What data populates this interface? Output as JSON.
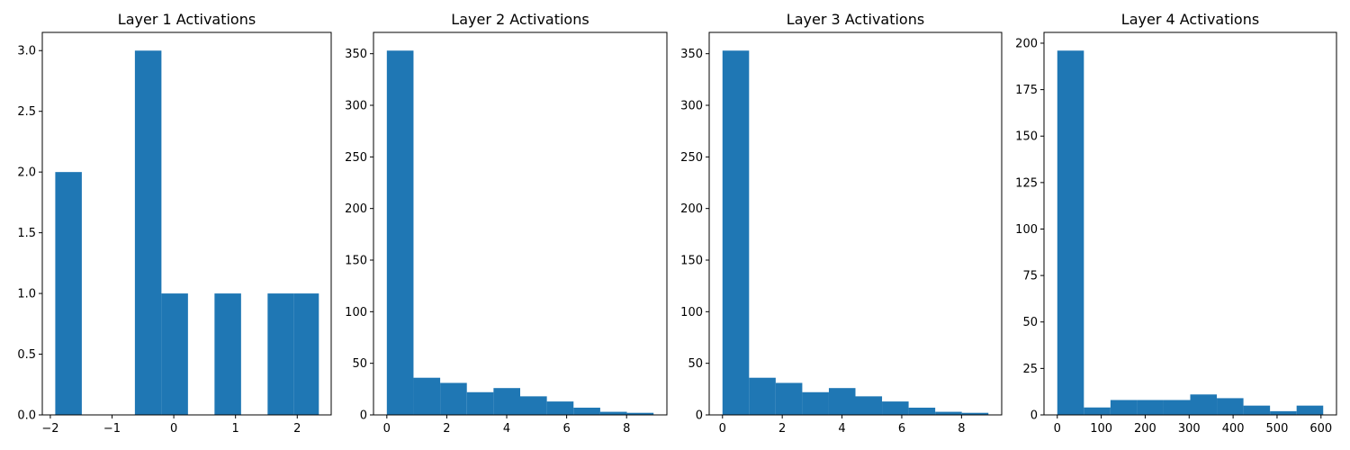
{
  "bar_color": "#1f77b4",
  "chart_data": [
    {
      "type": "bar",
      "title": "Layer 1 Activations",
      "xlabel": "",
      "ylabel": "",
      "bin_edges": [
        -1.92,
        -1.49,
        -1.06,
        -0.63,
        -0.2,
        0.23,
        0.66,
        1.09,
        1.52,
        1.95,
        2.35
      ],
      "counts": [
        2,
        0,
        0,
        3,
        1,
        0,
        1,
        0,
        1,
        1
      ],
      "xlim": [
        -2.13,
        2.55
      ],
      "ylim": [
        0,
        3.15
      ],
      "xticks": [
        -2,
        -1,
        0,
        1,
        2
      ],
      "xtick_labels": [
        "−2",
        "−1",
        "0",
        "1",
        "2"
      ],
      "yticks": [
        0,
        0.5,
        1,
        1.5,
        2,
        2.5,
        3
      ],
      "ytick_labels": [
        "0.0",
        "0.5",
        "1.0",
        "1.5",
        "2.0",
        "2.5",
        "3.0"
      ]
    },
    {
      "type": "bar",
      "title": "Layer 2 Activations",
      "xlabel": "",
      "ylabel": "",
      "bin_edges": [
        0,
        0.89,
        1.78,
        2.67,
        3.56,
        4.45,
        5.34,
        6.23,
        7.12,
        8.01,
        8.9
      ],
      "counts": [
        353,
        36,
        31,
        22,
        26,
        18,
        13,
        7,
        3,
        2
      ],
      "xlim": [
        -0.445,
        9.345
      ],
      "ylim": [
        0,
        370.65
      ],
      "xticks": [
        0,
        2,
        4,
        6,
        8
      ],
      "xtick_labels": [
        "0",
        "2",
        "4",
        "6",
        "8"
      ],
      "yticks": [
        0,
        50,
        100,
        150,
        200,
        250,
        300,
        350
      ],
      "ytick_labels": [
        "0",
        "50",
        "100",
        "150",
        "200",
        "250",
        "300",
        "350"
      ]
    },
    {
      "type": "bar",
      "title": "Layer 3 Activations",
      "xlabel": "",
      "ylabel": "",
      "bin_edges": [
        0,
        0.89,
        1.78,
        2.67,
        3.56,
        4.45,
        5.34,
        6.23,
        7.12,
        8.01,
        8.9
      ],
      "counts": [
        353,
        36,
        31,
        22,
        26,
        18,
        13,
        7,
        3,
        2
      ],
      "xlim": [
        -0.445,
        9.345
      ],
      "ylim": [
        0,
        370.65
      ],
      "xticks": [
        0,
        2,
        4,
        6,
        8
      ],
      "xtick_labels": [
        "0",
        "2",
        "4",
        "6",
        "8"
      ],
      "yticks": [
        0,
        50,
        100,
        150,
        200,
        250,
        300,
        350
      ],
      "ytick_labels": [
        "0",
        "50",
        "100",
        "150",
        "200",
        "250",
        "300",
        "350"
      ]
    },
    {
      "type": "bar",
      "title": "Layer 4 Activations",
      "xlabel": "",
      "ylabel": "",
      "bin_edges": [
        0,
        60.5,
        121,
        181.5,
        242,
        302.5,
        363,
        423.5,
        484,
        544.5,
        605
      ],
      "counts": [
        196,
        4,
        8,
        8,
        8,
        11,
        9,
        5,
        2,
        5
      ],
      "xlim": [
        -30.25,
        635.25
      ],
      "ylim": [
        0,
        205.8
      ],
      "xticks": [
        0,
        100,
        200,
        300,
        400,
        500,
        600
      ],
      "xtick_labels": [
        "0",
        "100",
        "200",
        "300",
        "400",
        "500",
        "600"
      ],
      "yticks": [
        0,
        25,
        50,
        75,
        100,
        125,
        150,
        175,
        200
      ],
      "ytick_labels": [
        "0",
        "25",
        "50",
        "75",
        "100",
        "125",
        "150",
        "175",
        "200"
      ]
    }
  ]
}
